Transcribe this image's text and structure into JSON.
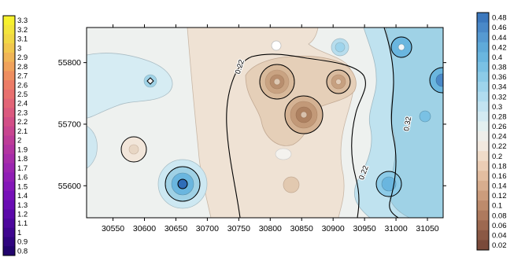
{
  "chart_data": {
    "type": "heatmap",
    "subtype": "filled-contour",
    "title": "",
    "xlabel": "",
    "ylabel": "",
    "x_ticks": [
      30550,
      30600,
      30650,
      30700,
      30750,
      30800,
      30850,
      30900,
      30950,
      31000,
      31050
    ],
    "y_ticks": [
      55600,
      55700,
      55800
    ],
    "xlim": [
      30508,
      31075
    ],
    "ylim": [
      55548,
      55857
    ],
    "contour_labels": [
      {
        "text": "0.22",
        "x": 30755,
        "y": 55792,
        "angle": -72
      },
      {
        "text": "0.22",
        "x": 30952,
        "y": 55620,
        "angle": -70
      },
      {
        "text": "0.32",
        "x": 31022,
        "y": 55700,
        "angle": -80
      }
    ],
    "field_features": [
      {
        "kind": "low",
        "x": 30845,
        "y": 55716,
        "value": 0.06
      },
      {
        "kind": "low",
        "x": 30820,
        "y": 55766,
        "value": 0.08
      },
      {
        "kind": "low",
        "x": 30912,
        "y": 55770,
        "value": 0.1
      },
      {
        "kind": "low",
        "x": 30600,
        "y": 55660,
        "value": 0.2
      },
      {
        "kind": "low",
        "x": 30830,
        "y": 55590,
        "value": 0.16
      },
      {
        "kind": "high",
        "x": 30660,
        "y": 55604,
        "value": 0.42
      },
      {
        "kind": "high",
        "x": 31020,
        "y": 55826,
        "value": 0.4
      },
      {
        "kind": "high",
        "x": 31072,
        "y": 55770,
        "value": 0.42
      },
      {
        "kind": "high",
        "x": 31005,
        "y": 55604,
        "value": 0.34
      },
      {
        "kind": "high",
        "x": 30620,
        "y": 55770,
        "value": 0.32
      },
      {
        "kind": "high",
        "x": 30910,
        "y": 55822,
        "value": 0.32
      },
      {
        "kind": "high",
        "x": 30520,
        "y": 55650,
        "value": 0.28
      }
    ],
    "colorbar_left": {
      "labels": [
        "3.3",
        "3.2",
        "3.1",
        "3",
        "2.9",
        "2.8",
        "2.7",
        "2.6",
        "2.5",
        "2.4",
        "2.3",
        "2.2",
        "2.1",
        "2",
        "1.9",
        "1.8",
        "1.7",
        "1.6",
        "1.5",
        "1.4",
        "1.3",
        "1.2",
        "1.1",
        "1",
        "0.9",
        "0.8"
      ],
      "colors": [
        "#f6f12e",
        "#f3e53c",
        "#f1d845",
        "#f1c74e",
        "#f0b557",
        "#f0a25c",
        "#ee8e60",
        "#ec7c67",
        "#e8706f",
        "#e26577",
        "#db5a7f",
        "#d24f87",
        "#c84690",
        "#bd3d98",
        "#b235a1",
        "#a72da9",
        "#9b25b0",
        "#901eb5",
        "#8417b8",
        "#7711b8",
        "#690cb3",
        "#5b09a9",
        "#4d079d",
        "#3f068f",
        "#30057f",
        "#22046d"
      ]
    },
    "colorbar_right": {
      "labels": [
        "0.48",
        "0.46",
        "0.44",
        "0.42",
        "0.4",
        "0.38",
        "0.36",
        "0.34",
        "0.32",
        "0.3",
        "0.28",
        "0.26",
        "0.24",
        "0.22",
        "0.2",
        "0.18",
        "0.16",
        "0.14",
        "0.12",
        "0.1",
        "0.08",
        "0.06",
        "0.04",
        "0.02"
      ],
      "colors": [
        "#3c78bd",
        "#4a89c8",
        "#569ad2",
        "#5faad9",
        "#6ab6df",
        "#7ac1e4",
        "#8ccbe8",
        "#9ed4ec",
        "#b0dcef",
        "#c2e3f1",
        "#d3eaf2",
        "#e3f0f0",
        "#eeeeea",
        "#f2e9df",
        "#f0dcc9",
        "#ebcdb5",
        "#e2bda0",
        "#d7ad8e",
        "#cb9c7c",
        "#bd8b6c",
        "#ae7a5e",
        "#9d6950",
        "#8b5945",
        "#7a4a3a"
      ]
    }
  }
}
